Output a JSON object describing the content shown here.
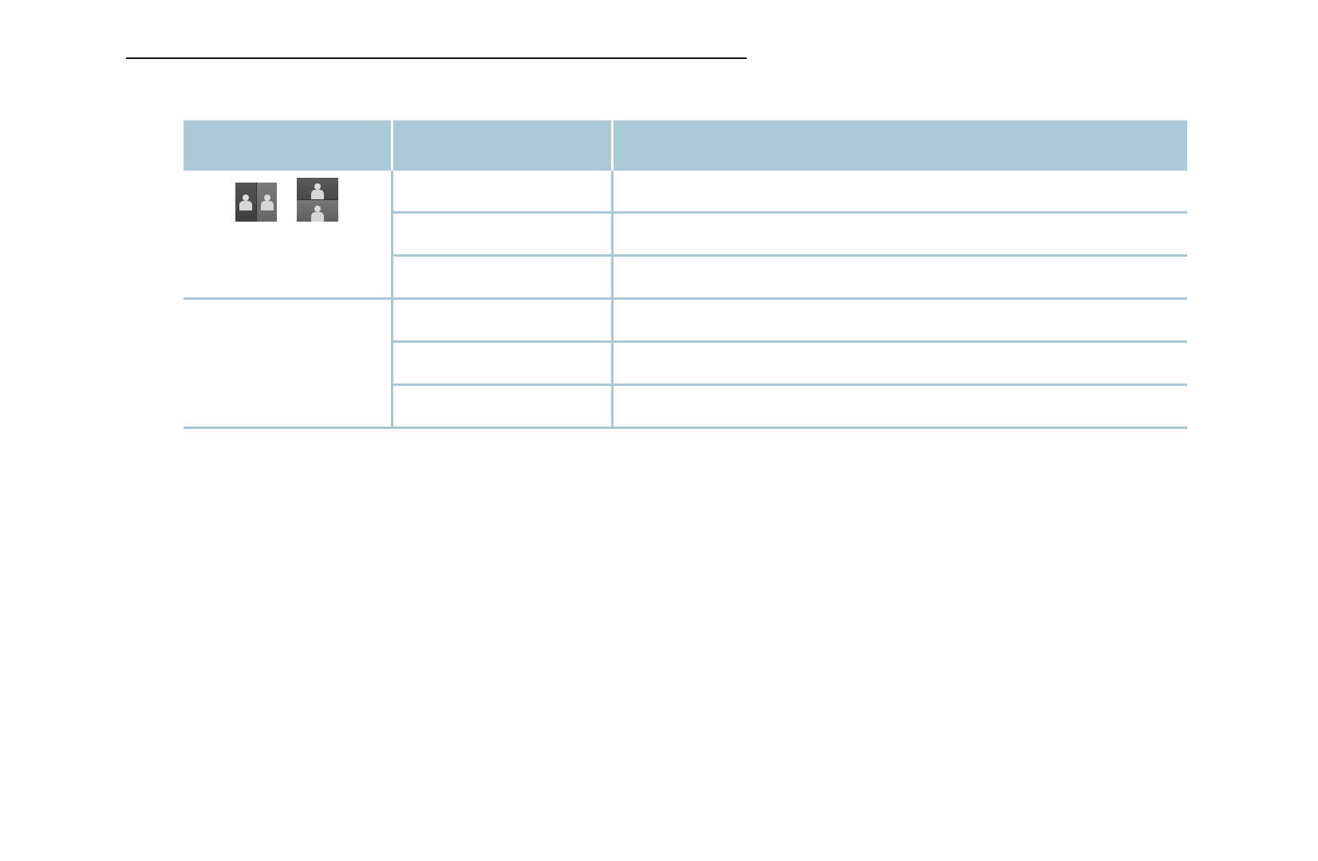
{
  "document": {
    "colors": {
      "header_bg": "#abc8d6",
      "grid_line": "#a9c7d5",
      "rule": "#111111"
    },
    "table": {
      "columns": [
        "",
        "",
        ""
      ],
      "groups": [
        {
          "icons": [
            "split-screen-side-by-side-icon",
            "split-screen-stacked-icon"
          ],
          "rows": [
            [
              "",
              ""
            ],
            [
              "",
              ""
            ],
            [
              "",
              ""
            ]
          ]
        },
        {
          "icons": [],
          "rows": [
            [
              "",
              ""
            ],
            [
              "",
              ""
            ],
            [
              "",
              ""
            ]
          ]
        }
      ]
    }
  }
}
